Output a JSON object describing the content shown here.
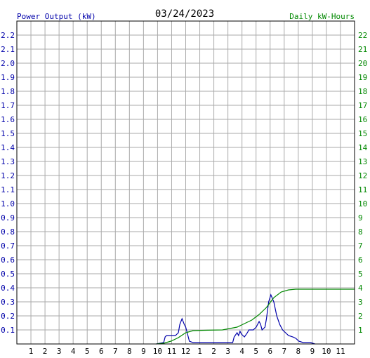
{
  "chart_data": {
    "type": "line",
    "date": "03/24/2023",
    "left_axis_label": "Power Output (kW)",
    "right_axis_label": "Daily kW-Hours",
    "left_axis_color": "#0000aa",
    "right_axis_color": "#008800",
    "grid": true,
    "left_ylim": [
      0,
      2.3
    ],
    "right_ylim": [
      0,
      23
    ],
    "left_ticks": [
      "0.1",
      "0.2",
      "0.3",
      "0.4",
      "0.5",
      "0.6",
      "0.7",
      "0.8",
      "0.9",
      "1.0",
      "1.1",
      "1.2",
      "1.3",
      "1.4",
      "1.5",
      "1.6",
      "1.7",
      "1.8",
      "1.9",
      "2.0",
      "2.1",
      "2.2"
    ],
    "right_ticks": [
      "1",
      "2",
      "3",
      "4",
      "5",
      "6",
      "7",
      "8",
      "9",
      "10",
      "11",
      "12",
      "13",
      "14",
      "15",
      "16",
      "17",
      "18",
      "19",
      "20",
      "21",
      "22"
    ],
    "x_ticks": [
      "1",
      "2",
      "3",
      "4",
      "5",
      "6",
      "7",
      "8",
      "9",
      "10",
      "11",
      "12",
      "1",
      "2",
      "3",
      "4",
      "5",
      "6",
      "7",
      "8",
      "9",
      "10",
      "11"
    ],
    "xlim": [
      0,
      23
    ],
    "series": [
      {
        "axis": "left",
        "color": "#0000aa",
        "points": [
          [
            9.5,
            0
          ],
          [
            10.0,
            0.01
          ],
          [
            10.1,
            0.05
          ],
          [
            10.2,
            0.06
          ],
          [
            10.5,
            0.06
          ],
          [
            10.8,
            0.06
          ],
          [
            11.0,
            0.08
          ],
          [
            11.1,
            0.14
          ],
          [
            11.25,
            0.18
          ],
          [
            11.4,
            0.14
          ],
          [
            11.5,
            0.12
          ],
          [
            11.6,
            0.08
          ],
          [
            11.75,
            0.02
          ],
          [
            12.0,
            0.01
          ],
          [
            13.0,
            0.01
          ],
          [
            14.0,
            0.01
          ],
          [
            14.7,
            0.01
          ],
          [
            14.8,
            0.05
          ],
          [
            15.0,
            0.08
          ],
          [
            15.1,
            0.06
          ],
          [
            15.2,
            0.09
          ],
          [
            15.3,
            0.07
          ],
          [
            15.5,
            0.05
          ],
          [
            15.7,
            0.08
          ],
          [
            15.8,
            0.1
          ],
          [
            16.1,
            0.1
          ],
          [
            16.3,
            0.12
          ],
          [
            16.5,
            0.16
          ],
          [
            16.6,
            0.14
          ],
          [
            16.7,
            0.1
          ],
          [
            16.9,
            0.12
          ],
          [
            17.0,
            0.18
          ],
          [
            17.15,
            0.3
          ],
          [
            17.3,
            0.35
          ],
          [
            17.5,
            0.3
          ],
          [
            17.7,
            0.2
          ],
          [
            17.9,
            0.14
          ],
          [
            18.1,
            0.1
          ],
          [
            18.3,
            0.08
          ],
          [
            18.5,
            0.06
          ],
          [
            18.8,
            0.05
          ],
          [
            19.0,
            0.04
          ],
          [
            19.2,
            0.02
          ],
          [
            19.5,
            0.01
          ],
          [
            20.0,
            0.01
          ],
          [
            20.3,
            0.0
          ]
        ]
      },
      {
        "axis": "right",
        "color": "#008800",
        "points": [
          [
            9.5,
            0
          ],
          [
            10.0,
            0.05
          ],
          [
            10.5,
            0.2
          ],
          [
            11.0,
            0.45
          ],
          [
            11.5,
            0.8
          ],
          [
            12.0,
            0.95
          ],
          [
            13.0,
            0.98
          ],
          [
            14.0,
            1.0
          ],
          [
            15.0,
            1.2
          ],
          [
            15.5,
            1.45
          ],
          [
            16.0,
            1.7
          ],
          [
            16.5,
            2.1
          ],
          [
            17.0,
            2.6
          ],
          [
            17.5,
            3.3
          ],
          [
            18.0,
            3.7
          ],
          [
            18.5,
            3.85
          ],
          [
            19.0,
            3.9
          ],
          [
            23.0,
            3.9
          ]
        ]
      }
    ]
  }
}
